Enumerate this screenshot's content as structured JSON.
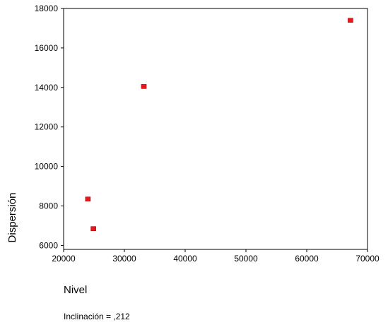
{
  "chart_data": {
    "type": "scatter",
    "title": "",
    "xlabel": "Nivel",
    "ylabel": "Dispersión",
    "xlim": [
      20000,
      70000
    ],
    "ylim": [
      5800,
      18000
    ],
    "x_ticks": [
      20000,
      30000,
      40000,
      50000,
      60000,
      70000
    ],
    "y_ticks": [
      6000,
      8000,
      10000,
      12000,
      14000,
      16000,
      18000
    ],
    "x_tick_labels": [
      "20000",
      "30000",
      "40000",
      "50000",
      "60000",
      "70000"
    ],
    "y_tick_labels": [
      "6000",
      "8000",
      "10000",
      "12000",
      "14000",
      "16000",
      "18000"
    ],
    "grid": false,
    "point_color": "#e8181e",
    "points": [
      {
        "x": 24000,
        "y": 8350
      },
      {
        "x": 24900,
        "y": 6850
      },
      {
        "x": 33200,
        "y": 14050
      },
      {
        "x": 67200,
        "y": 17400
      }
    ],
    "annotation": "Inclinación = ,212"
  }
}
